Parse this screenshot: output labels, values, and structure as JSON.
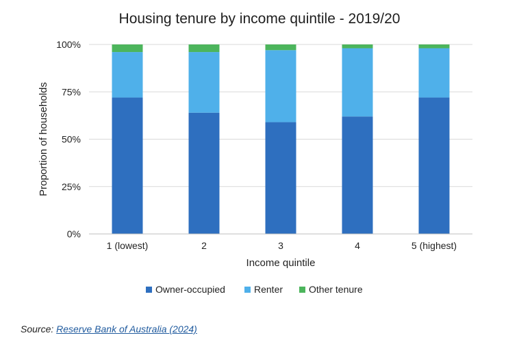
{
  "chart_data": {
    "type": "bar",
    "stacked": true,
    "title": "Housing tenure by income quintile - 2019/20",
    "xlabel": "Income quintile",
    "ylabel": "Proportion of households",
    "categories": [
      "1 (lowest)",
      "2",
      "3",
      "4",
      "5 (highest)"
    ],
    "ylim": [
      0,
      100
    ],
    "y_ticks": [
      "0%",
      "25%",
      "50%",
      "75%",
      "100%"
    ],
    "y_tick_values": [
      0,
      25,
      50,
      75,
      100
    ],
    "grid": true,
    "legend_position": "bottom",
    "series": [
      {
        "name": "Owner-occupied",
        "color": "#2e6fbf",
        "values": [
          72,
          64,
          59,
          62,
          72
        ]
      },
      {
        "name": "Renter",
        "color": "#4fb0ea",
        "values": [
          24,
          32,
          38,
          36,
          26
        ]
      },
      {
        "name": "Other tenure",
        "color": "#4cb55c",
        "values": [
          4,
          4,
          3,
          2,
          2
        ]
      }
    ]
  },
  "source": {
    "label": "Source:",
    "link_text": "Reserve Bank of Australia (2024)"
  }
}
